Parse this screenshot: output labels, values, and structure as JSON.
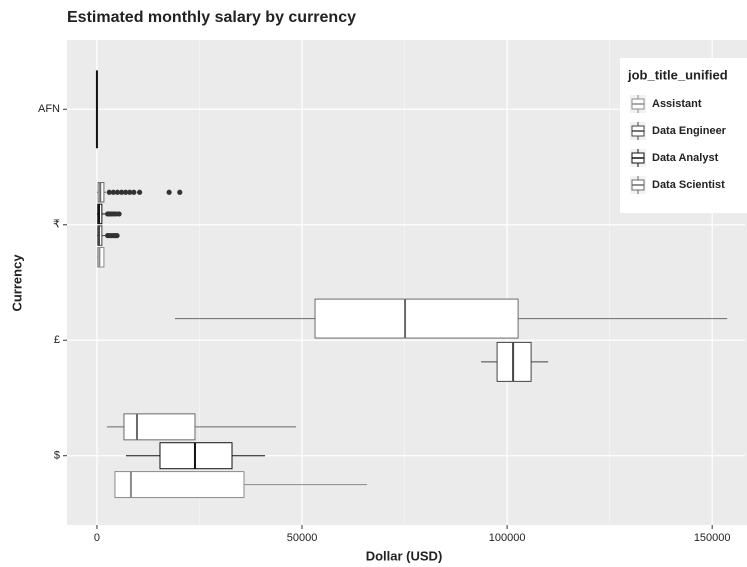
{
  "chart_data": {
    "type": "boxplot",
    "title": "Estimated monthly salary by currency",
    "x_label": "Dollar (USD)",
    "y_label": "Currency",
    "categories": [
      "$",
      "£",
      "₹",
      "AFN"
    ],
    "xlim": [
      -7300,
      158000
    ],
    "xticks": [
      0,
      50000,
      100000,
      150000
    ],
    "grid": true,
    "legend_title": "job_title_unified",
    "legend_position": "top-right",
    "groups": [
      {
        "name": "Assistant",
        "color": "#8a8a8a"
      },
      {
        "name": "Data Engineer",
        "color": "#444444"
      },
      {
        "name": "Data Analyst",
        "color": "#111111"
      },
      {
        "name": "Data Scientist",
        "color": "#6a6a6a"
      }
    ],
    "boxes": [
      {
        "category": "$",
        "group": "Assistant",
        "whislo": 4390,
        "q1": 4390,
        "med": 8290,
        "q3": 35850,
        "whishi": 65850,
        "outliers": []
      },
      {
        "category": "$",
        "group": "Data Analyst",
        "whislo": 7070,
        "q1": 15370,
        "med": 23900,
        "q3": 32930,
        "whishi": 40980,
        "outliers": []
      },
      {
        "category": "$",
        "group": "Data Scientist",
        "whislo": 2440,
        "q1": 6590,
        "med": 9760,
        "q3": 23900,
        "whishi": 48540,
        "outliers": []
      },
      {
        "category": "£",
        "group": "Data Engineer",
        "whislo": 93660,
        "q1": 97560,
        "med": 101460,
        "q3": 105850,
        "whishi": 110000,
        "outliers": []
      },
      {
        "category": "£",
        "group": "Data Scientist",
        "whislo": 19020,
        "q1": 53170,
        "med": 75120,
        "q3": 102680,
        "whishi": 153660,
        "outliers": []
      },
      {
        "category": "₹",
        "group": "Assistant",
        "whislo": 0,
        "q1": 200,
        "med": 600,
        "q3": 1700,
        "whishi": 1700,
        "outliers": []
      },
      {
        "category": "₹",
        "group": "Data Engineer",
        "whislo": 0,
        "q1": 200,
        "med": 500,
        "q3": 1200,
        "whishi": 2200,
        "outliers": [
          2600,
          3000,
          3500,
          4000,
          4500,
          4900
        ]
      },
      {
        "category": "₹",
        "group": "Data Analyst",
        "whislo": 0,
        "q1": 200,
        "med": 500,
        "q3": 1200,
        "whishi": 2200,
        "outliers": [
          2600,
          3100,
          3600,
          4100,
          4700,
          5400
        ]
      },
      {
        "category": "₹",
        "group": "Data Scientist",
        "whislo": 0,
        "q1": 300,
        "med": 800,
        "q3": 1700,
        "whishi": 2200,
        "outliers": [
          3000,
          4000,
          5000,
          6000,
          7000,
          8000,
          9000,
          10400,
          17600,
          20200
        ]
      },
      {
        "category": "AFN",
        "group": "Data Analyst",
        "whislo": 0,
        "q1": 0,
        "med": 0,
        "q3": 0,
        "whishi": 0,
        "outliers": []
      }
    ]
  }
}
